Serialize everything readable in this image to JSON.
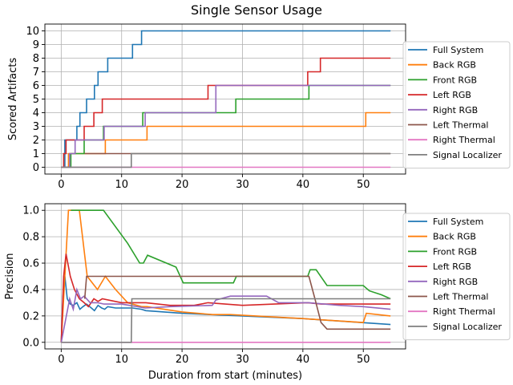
{
  "title": "Single Sensor Usage",
  "xlabel": "Duration from start (minutes)",
  "chart_data": [
    {
      "type": "line",
      "title": "Single Sensor Usage",
      "xlabel": "",
      "ylabel": "Scored Artifacts",
      "xlim": [
        -2.7,
        57
      ],
      "ylim": [
        -0.5,
        10.5
      ],
      "xticks": [
        0,
        10,
        20,
        30,
        40,
        50
      ],
      "yticks": [
        0,
        1,
        2,
        3,
        4,
        5,
        6,
        7,
        8,
        9,
        10
      ],
      "grid": true,
      "legend": "outside-right",
      "step": true,
      "series": [
        {
          "name": "Full System",
          "color": "#1f77b4",
          "x": [
            0,
            0.6,
            2.6,
            3.1,
            3.6,
            4.2,
            5.5,
            6.1,
            6.7,
            7.2,
            7.7,
            11.8,
            13.3,
            14.0,
            54.5
          ],
          "y": [
            0,
            2,
            3,
            4,
            4,
            5,
            6,
            7,
            7,
            7,
            8,
            9,
            10,
            10,
            10
          ]
        },
        {
          "name": "Back RGB",
          "color": "#ff7f0e",
          "x": [
            0,
            1.2,
            4.2,
            7.3,
            13.3,
            14.2,
            50.4,
            54.5
          ],
          "y": [
            0,
            1,
            1,
            2,
            2,
            3,
            4,
            4
          ]
        },
        {
          "name": "Front RGB",
          "color": "#2ca02c",
          "x": [
            0,
            1.6,
            2.6,
            3.8,
            5.0,
            7.0,
            13.5,
            28.9,
            41.0,
            54.5
          ],
          "y": [
            0,
            1,
            1,
            2,
            2,
            3,
            4,
            5,
            6,
            6
          ]
        },
        {
          "name": "Left RGB",
          "color": "#d62728",
          "x": [
            0,
            0.4,
            0.8,
            3.8,
            5.4,
            6.8,
            24.3,
            40.8,
            42.9,
            54.5
          ],
          "y": [
            0,
            1,
            2,
            3,
            4,
            5,
            6,
            7,
            8,
            8
          ]
        },
        {
          "name": "Right RGB",
          "color": "#9467bd",
          "x": [
            0,
            1.4,
            2.3,
            4.8,
            7.1,
            13.9,
            25.6,
            54.5
          ],
          "y": [
            0,
            1,
            2,
            2,
            3,
            4,
            6,
            6
          ]
        },
        {
          "name": "Left Thermal",
          "color": "#8c564b",
          "x": [
            3.9,
            54.5
          ],
          "y": [
            1,
            1
          ]
        },
        {
          "name": "Right Thermal",
          "color": "#e377c2",
          "x": [
            0,
            54.5
          ],
          "y": [
            0,
            0
          ]
        },
        {
          "name": "Signal Localizer",
          "color": "#7f7f7f",
          "x": [
            0,
            11.6,
            54.5
          ],
          "y": [
            0,
            1,
            1
          ]
        }
      ]
    },
    {
      "type": "line",
      "title": "",
      "xlabel": "Duration from start (minutes)",
      "ylabel": "Precision",
      "xlim": [
        -2.7,
        57
      ],
      "ylim": [
        -0.05,
        1.05
      ],
      "xticks": [
        0,
        10,
        20,
        30,
        40,
        50
      ],
      "yticks": [
        0.0,
        0.2,
        0.4,
        0.6,
        0.8,
        1.0
      ],
      "grid": true,
      "legend": "outside-right",
      "step": false,
      "series": [
        {
          "name": "Full System",
          "color": "#1f77b4",
          "x": [
            0,
            0.3,
            0.6,
            1.0,
            1.5,
            2.0,
            2.6,
            3.1,
            3.6,
            4.2,
            5.0,
            5.5,
            6.1,
            6.7,
            7.2,
            7.7,
            9.0,
            11.8,
            13.3,
            14.0,
            20.0,
            30.0,
            40.0,
            54.5
          ],
          "y": [
            0,
            0.35,
            0.5,
            0.33,
            0.29,
            0.28,
            0.3,
            0.25,
            0.27,
            0.29,
            0.26,
            0.24,
            0.28,
            0.26,
            0.25,
            0.27,
            0.26,
            0.26,
            0.25,
            0.24,
            0.22,
            0.2,
            0.18,
            0.135
          ]
        },
        {
          "name": "Back RGB",
          "color": "#ff7f0e",
          "x": [
            0,
            1.2,
            3.0,
            4.3,
            6.0,
            7.3,
            9.0,
            11.0,
            13.3,
            14.2,
            20.0,
            25.0,
            28.0,
            40.0,
            50.0,
            50.5,
            54.5
          ],
          "y": [
            0,
            1.0,
            1.0,
            0.5,
            0.4,
            0.5,
            0.4,
            0.3,
            0.27,
            0.27,
            0.23,
            0.21,
            0.21,
            0.18,
            0.15,
            0.22,
            0.2
          ]
        },
        {
          "name": "Front RGB",
          "color": "#2ca02c",
          "x": [
            1.6,
            4.0,
            7.0,
            11.0,
            13.0,
            13.6,
            14.3,
            19.0,
            20.2,
            28.5,
            29.0,
            40.8,
            41.2,
            42.2,
            44.0,
            50.0,
            51.0,
            53.0,
            54.5
          ],
          "y": [
            1.0,
            1.0,
            1.0,
            0.75,
            0.6,
            0.6,
            0.66,
            0.57,
            0.45,
            0.45,
            0.5,
            0.5,
            0.55,
            0.55,
            0.43,
            0.43,
            0.39,
            0.36,
            0.33
          ]
        },
        {
          "name": "Left RGB",
          "color": "#d62728",
          "x": [
            0,
            0.4,
            0.8,
            1.5,
            2.2,
            3.0,
            3.8,
            4.5,
            5.4,
            6.1,
            6.8,
            10.0,
            14.0,
            18.0,
            22.0,
            24.3,
            30.0,
            40.8,
            43.0,
            54.5
          ],
          "y": [
            0,
            0.5,
            0.67,
            0.5,
            0.4,
            0.33,
            0.3,
            0.27,
            0.33,
            0.31,
            0.33,
            0.3,
            0.3,
            0.28,
            0.28,
            0.3,
            0.28,
            0.3,
            0.29,
            0.29
          ]
        },
        {
          "name": "Right RGB",
          "color": "#9467bd",
          "x": [
            0,
            1.4,
            2.0,
            2.6,
            3.2,
            3.8,
            4.8,
            6.0,
            7.1,
            10.0,
            13.9,
            18.0,
            25.0,
            25.6,
            28.0,
            34.0,
            36.0,
            41.0,
            46.0,
            50.0,
            54.5
          ],
          "y": [
            0,
            0.33,
            0.25,
            0.4,
            0.33,
            0.35,
            0.3,
            0.3,
            0.29,
            0.29,
            0.26,
            0.27,
            0.28,
            0.32,
            0.35,
            0.35,
            0.3,
            0.3,
            0.28,
            0.27,
            0.25
          ]
        },
        {
          "name": "Left Thermal",
          "color": "#8c564b",
          "x": [
            3.9,
            4.2,
            41.0,
            42.0,
            43.0,
            44.0,
            54.5
          ],
          "y": [
            0.33,
            0.5,
            0.5,
            0.33,
            0.15,
            0.1,
            0.1
          ]
        },
        {
          "name": "Right Thermal",
          "color": "#e377c2",
          "x": [
            0,
            54.5
          ],
          "y": [
            0.0,
            0.0
          ]
        },
        {
          "name": "Signal Localizer",
          "color": "#7f7f7f",
          "x": [
            0,
            11.6,
            11.7,
            54.5
          ],
          "y": [
            0.0,
            0.0,
            0.33,
            0.33
          ]
        }
      ]
    }
  ]
}
